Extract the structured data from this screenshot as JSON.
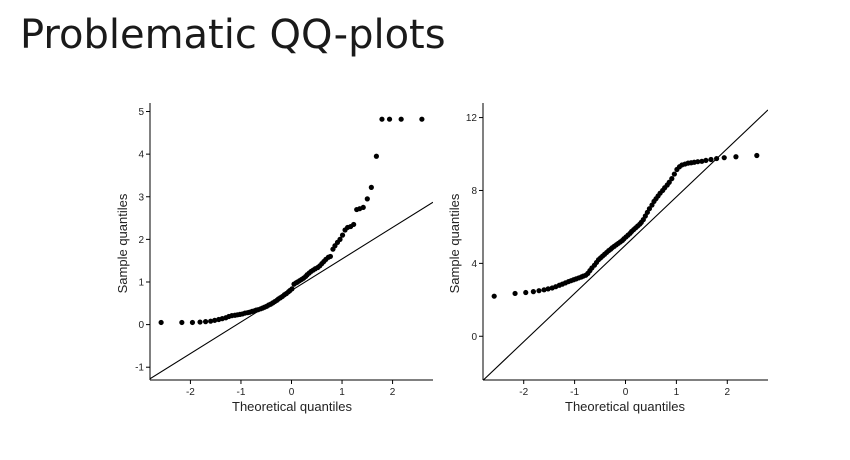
{
  "page": {
    "title": "Problematic QQ-plots"
  },
  "chart_data": [
    {
      "type": "scatter",
      "xlabel": "Theoretical quantiles",
      "ylabel": "Sample quantiles",
      "xlim": [
        -2.8,
        2.8
      ],
      "ylim": [
        -1.3,
        5.2
      ],
      "xticks": [
        -2,
        -1,
        0,
        1,
        2
      ],
      "yticks": [
        -1,
        0,
        1,
        2,
        3,
        4,
        5
      ],
      "reference_line": {
        "intercept": 0.8,
        "slope": 0.74
      },
      "points": {
        "x": [
          -2.58,
          -2.17,
          -1.96,
          -1.81,
          -1.7,
          -1.6,
          -1.52,
          -1.44,
          -1.37,
          -1.3,
          -1.24,
          -1.18,
          -1.12,
          -1.07,
          -1.02,
          -0.97,
          -0.92,
          -0.87,
          -0.83,
          -0.78,
          -0.74,
          -0.7,
          -0.66,
          -0.61,
          -0.57,
          -0.53,
          -0.49,
          -0.45,
          -0.41,
          -0.37,
          -0.33,
          -0.29,
          -0.26,
          -0.22,
          -0.18,
          -0.14,
          -0.1,
          -0.06,
          -0.03,
          0.01,
          0.05,
          0.09,
          0.12,
          0.16,
          0.2,
          0.24,
          0.28,
          0.31,
          0.35,
          0.39,
          0.43,
          0.47,
          0.52,
          0.56,
          0.6,
          0.64,
          0.68,
          0.73,
          0.77,
          0.82,
          0.86,
          0.91,
          0.96,
          1.01,
          1.06,
          1.11,
          1.17,
          1.23,
          1.29,
          1.35,
          1.42,
          1.5,
          1.58,
          1.68,
          1.79,
          1.94,
          2.17,
          2.58
        ],
        "y": [
          0.05,
          0.05,
          0.05,
          0.06,
          0.07,
          0.08,
          0.1,
          0.12,
          0.14,
          0.16,
          0.19,
          0.21,
          0.22,
          0.23,
          0.24,
          0.25,
          0.27,
          0.28,
          0.29,
          0.31,
          0.32,
          0.34,
          0.35,
          0.37,
          0.39,
          0.41,
          0.43,
          0.46,
          0.48,
          0.51,
          0.54,
          0.57,
          0.6,
          0.63,
          0.66,
          0.7,
          0.73,
          0.77,
          0.8,
          0.84,
          0.95,
          0.98,
          1.0,
          1.03,
          1.06,
          1.09,
          1.13,
          1.17,
          1.21,
          1.25,
          1.28,
          1.31,
          1.34,
          1.38,
          1.43,
          1.48,
          1.53,
          1.58,
          1.6,
          1.77,
          1.85,
          1.93,
          2.0,
          2.1,
          2.22,
          2.28,
          2.3,
          2.35,
          2.7,
          2.72,
          2.75,
          2.95,
          3.22,
          3.95,
          4.82,
          4.82,
          4.82,
          4.82
        ]
      }
    },
    {
      "type": "scatter",
      "xlabel": "Theoretical quantiles",
      "ylabel": "Sample quantiles",
      "xlim": [
        -2.8,
        2.8
      ],
      "ylim": [
        -2.4,
        12.8
      ],
      "xticks": [
        -2,
        -1,
        0,
        1,
        2
      ],
      "yticks": [
        0,
        4,
        8,
        12
      ],
      "reference_line": {
        "intercept": 5.0,
        "slope": 2.65
      },
      "points": {
        "x": [
          -2.58,
          -2.17,
          -1.96,
          -1.81,
          -1.7,
          -1.6,
          -1.52,
          -1.44,
          -1.37,
          -1.3,
          -1.24,
          -1.18,
          -1.12,
          -1.07,
          -1.02,
          -0.97,
          -0.92,
          -0.87,
          -0.83,
          -0.78,
          -0.74,
          -0.7,
          -0.66,
          -0.61,
          -0.57,
          -0.53,
          -0.49,
          -0.45,
          -0.41,
          -0.37,
          -0.33,
          -0.29,
          -0.26,
          -0.22,
          -0.18,
          -0.14,
          -0.1,
          -0.06,
          -0.03,
          0.01,
          0.05,
          0.09,
          0.12,
          0.16,
          0.2,
          0.24,
          0.28,
          0.31,
          0.35,
          0.39,
          0.43,
          0.47,
          0.52,
          0.56,
          0.6,
          0.64,
          0.68,
          0.73,
          0.77,
          0.82,
          0.86,
          0.91,
          0.96,
          1.01,
          1.06,
          1.11,
          1.17,
          1.23,
          1.29,
          1.35,
          1.42,
          1.5,
          1.58,
          1.68,
          1.79,
          1.94,
          2.17,
          2.58
        ],
        "y": [
          2.2,
          2.35,
          2.4,
          2.45,
          2.5,
          2.55,
          2.6,
          2.65,
          2.72,
          2.8,
          2.86,
          2.93,
          3.0,
          3.05,
          3.1,
          3.15,
          3.2,
          3.25,
          3.3,
          3.35,
          3.45,
          3.6,
          3.75,
          3.9,
          4.05,
          4.2,
          4.3,
          4.4,
          4.5,
          4.6,
          4.7,
          4.78,
          4.86,
          4.94,
          5.02,
          5.1,
          5.18,
          5.26,
          5.35,
          5.45,
          5.55,
          5.65,
          5.75,
          5.85,
          5.95,
          6.05,
          6.15,
          6.25,
          6.4,
          6.6,
          6.8,
          7.0,
          7.2,
          7.4,
          7.55,
          7.7,
          7.85,
          8.0,
          8.15,
          8.3,
          8.45,
          8.65,
          8.9,
          9.15,
          9.3,
          9.4,
          9.45,
          9.5,
          9.52,
          9.55,
          9.58,
          9.6,
          9.65,
          9.7,
          9.75,
          9.8,
          9.85,
          9.92
        ]
      }
    }
  ]
}
